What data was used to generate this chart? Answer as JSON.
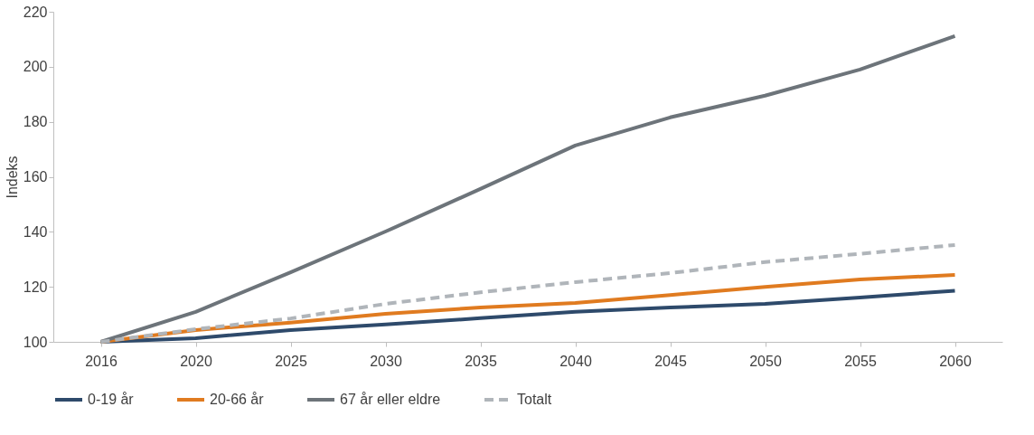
{
  "chart_data": {
    "type": "line",
    "ylabel": "Indeks",
    "categories": [
      "2016",
      "2020",
      "2025",
      "2030",
      "2035",
      "2040",
      "2045",
      "2050",
      "2055",
      "2060"
    ],
    "series": [
      {
        "name": "0-19 år",
        "color": "#2e4a6b",
        "line_style": "solid",
        "values": [
          100,
          101.3,
          104.3,
          106.3,
          108.6,
          110.9,
          112.5,
          113.8,
          116.1,
          118.6
        ]
      },
      {
        "name": "20-66 år",
        "color": "#e07b20",
        "line_style": "solid",
        "values": [
          100,
          104.3,
          107,
          110.2,
          112.5,
          114.1,
          117,
          120,
          122.7,
          124.3
        ]
      },
      {
        "name": "67 år eller eldre",
        "color": "#6d747a",
        "line_style": "solid",
        "values": [
          100,
          110.9,
          125.3,
          140.1,
          155.6,
          171.4,
          181.6,
          189.5,
          199,
          211.2
        ]
      },
      {
        "name": "Totalt",
        "color": "#b0b5ba",
        "line_style": "dashed",
        "values": [
          100,
          104.6,
          108.5,
          113.8,
          118,
          121.7,
          125,
          129,
          132,
          135.2
        ]
      }
    ],
    "ylim": [
      100,
      220
    ],
    "yticks": [
      100,
      120,
      140,
      160,
      180,
      200,
      220
    ],
    "grid": false,
    "legend": "bottom",
    "marker": "none"
  }
}
